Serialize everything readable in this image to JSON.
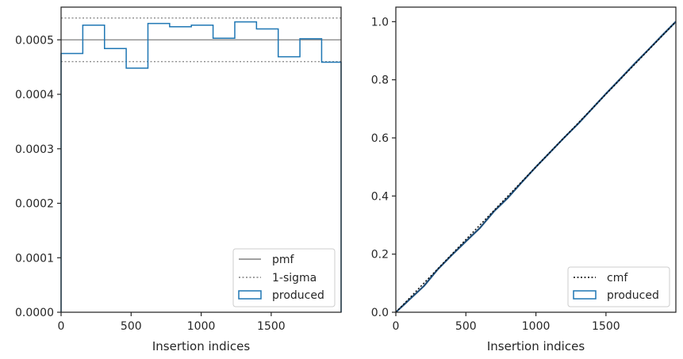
{
  "chart_data": [
    {
      "type": "step",
      "xlabel": "Insertion indices",
      "xlim": [
        0,
        1999
      ],
      "ylim": [
        0,
        0.00056
      ],
      "xticks": [
        0,
        500,
        1000,
        1500
      ],
      "xtick_labels": [
        "0",
        "500",
        "1000",
        "1500"
      ],
      "yticks": [
        0,
        0.0001,
        0.0002,
        0.0003,
        0.0004,
        0.0005
      ],
      "ytick_labels": [
        "0.0000",
        "0.0001",
        "0.0002",
        "0.0003",
        "0.0004",
        "0.0005"
      ],
      "grid": false,
      "legend_placement": "lower-right",
      "pmf": {
        "label": "pmf",
        "value": 0.0005,
        "color": "#808080"
      },
      "sigma": {
        "label": "1-sigma",
        "values": [
          0.00046,
          0.00054
        ],
        "color": "#808080"
      },
      "produced": {
        "label": "produced",
        "color": "#1f77b4",
        "bin_edges": [
          0,
          155,
          310,
          465,
          620,
          775,
          930,
          1085,
          1240,
          1395,
          1550,
          1705,
          1860,
          1999
        ],
        "values": [
          0.000475,
          0.000527,
          0.000484,
          0.000448,
          0.00053,
          0.000524,
          0.000527,
          0.000503,
          0.000533,
          0.00052,
          0.000469,
          0.000502,
          0.000459
        ]
      }
    },
    {
      "type": "line",
      "xlabel": "Insertion indices",
      "xlim": [
        0,
        1999
      ],
      "ylim": [
        0,
        1.05
      ],
      "xticks": [
        0,
        500,
        1000,
        1500
      ],
      "xtick_labels": [
        "0",
        "500",
        "1000",
        "1500"
      ],
      "yticks": [
        0,
        0.2,
        0.4,
        0.6,
        0.8,
        1.0
      ],
      "ytick_labels": [
        "0.0",
        "0.2",
        "0.4",
        "0.6",
        "0.8",
        "1.0"
      ],
      "grid": false,
      "legend_placement": "lower-right",
      "cmf": {
        "label": "cmf",
        "color": "#000000",
        "x": [
          0,
          1999
        ],
        "y": [
          0,
          1.0
        ]
      },
      "produced": {
        "label": "produced",
        "line_color": "#1f4e79",
        "color": "#1f77b4",
        "x": [
          0,
          100,
          200,
          300,
          400,
          500,
          600,
          700,
          800,
          900,
          1000,
          1100,
          1200,
          1300,
          1400,
          1500,
          1600,
          1700,
          1800,
          1900,
          1999
        ],
        "y": [
          0,
          0.045,
          0.09,
          0.148,
          0.197,
          0.244,
          0.29,
          0.347,
          0.394,
          0.448,
          0.5,
          0.55,
          0.6,
          0.648,
          0.7,
          0.752,
          0.802,
          0.853,
          0.902,
          0.952,
          1.0
        ]
      }
    }
  ]
}
